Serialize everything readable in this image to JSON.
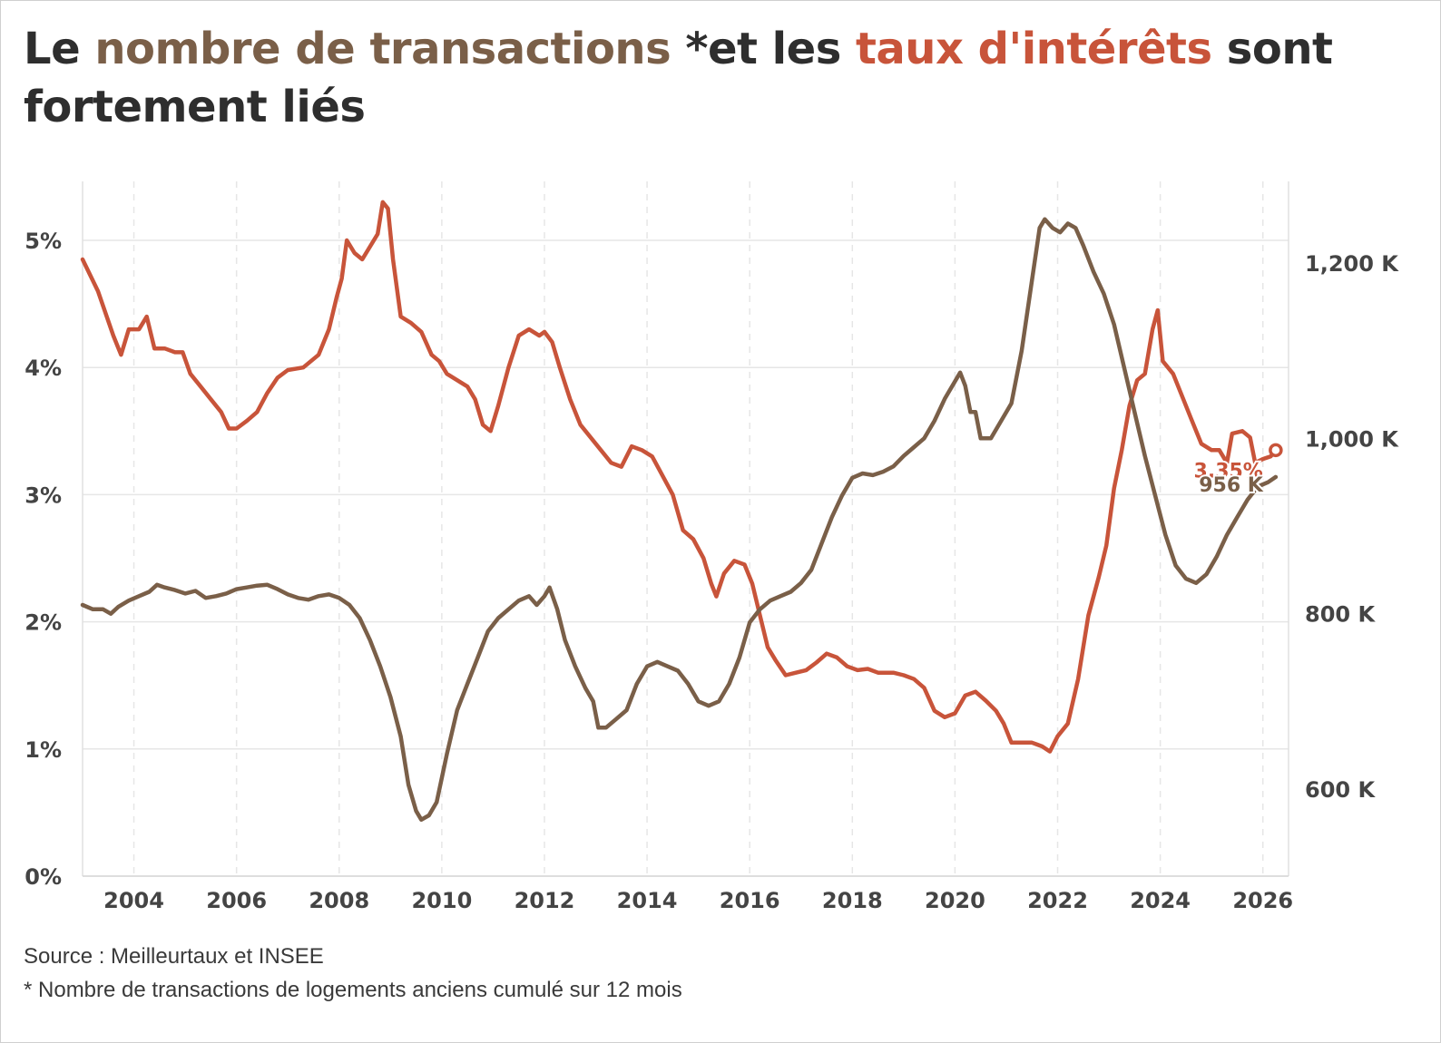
{
  "title": {
    "part1": "Le ",
    "part2": "nombre de transactions",
    "part3": " *et les ",
    "part4": "taux d'intérêts",
    "part5": " sont fortement liés"
  },
  "source": "Source : Meilleurtaux et INSEE",
  "note": "* Nombre de transactions de logements anciens cumulé sur 12 mois",
  "colors": {
    "rate": "#c8543a",
    "transactions": "#7a5f48",
    "text": "#2e2e2e",
    "axis": "#444444",
    "grid": "#e6e6e6"
  },
  "chart_data": {
    "type": "line",
    "x_ticks": [
      "2004",
      "2006",
      "2008",
      "2010",
      "2012",
      "2014",
      "2016",
      "2018",
      "2020",
      "2022",
      "2024",
      "2026"
    ],
    "xlim": [
      2003.0,
      2026.5
    ],
    "y_left_ticks": [
      "0%",
      "1%",
      "2%",
      "3%",
      "4%",
      "5%"
    ],
    "y_left_lim": [
      0,
      5.0
    ],
    "y_right_ticks": [
      "600 K",
      "800 K",
      "1,000 K",
      "1,200 K"
    ],
    "y_right_lim": [
      500,
      1300
    ],
    "grid": true,
    "series": [
      {
        "key": "rate",
        "axis": "left",
        "unit": "%",
        "end_label": "3.35%",
        "points": [
          [
            2003.0,
            4.85
          ],
          [
            2003.3,
            4.6
          ],
          [
            2003.6,
            4.25
          ],
          [
            2003.75,
            4.1
          ],
          [
            2003.9,
            4.3
          ],
          [
            2004.1,
            4.3
          ],
          [
            2004.25,
            4.4
          ],
          [
            2004.4,
            4.15
          ],
          [
            2004.6,
            4.15
          ],
          [
            2004.8,
            4.12
          ],
          [
            2004.95,
            4.12
          ],
          [
            2005.1,
            3.95
          ],
          [
            2005.3,
            3.85
          ],
          [
            2005.5,
            3.75
          ],
          [
            2005.7,
            3.65
          ],
          [
            2005.85,
            3.52
          ],
          [
            2006.0,
            3.52
          ],
          [
            2006.2,
            3.58
          ],
          [
            2006.4,
            3.65
          ],
          [
            2006.6,
            3.8
          ],
          [
            2006.8,
            3.92
          ],
          [
            2007.0,
            3.98
          ],
          [
            2007.3,
            4.0
          ],
          [
            2007.6,
            4.1
          ],
          [
            2007.8,
            4.3
          ],
          [
            2007.95,
            4.55
          ],
          [
            2008.05,
            4.7
          ],
          [
            2008.15,
            5.0
          ],
          [
            2008.3,
            4.9
          ],
          [
            2008.45,
            4.85
          ],
          [
            2008.6,
            4.95
          ],
          [
            2008.75,
            5.05
          ],
          [
            2008.85,
            5.3
          ],
          [
            2008.95,
            5.25
          ],
          [
            2009.05,
            4.85
          ],
          [
            2009.2,
            4.4
          ],
          [
            2009.4,
            4.35
          ],
          [
            2009.6,
            4.28
          ],
          [
            2009.8,
            4.1
          ],
          [
            2009.95,
            4.05
          ],
          [
            2010.1,
            3.95
          ],
          [
            2010.3,
            3.9
          ],
          [
            2010.5,
            3.85
          ],
          [
            2010.65,
            3.75
          ],
          [
            2010.8,
            3.55
          ],
          [
            2010.95,
            3.5
          ],
          [
            2011.1,
            3.7
          ],
          [
            2011.3,
            4.0
          ],
          [
            2011.5,
            4.25
          ],
          [
            2011.7,
            4.3
          ],
          [
            2011.9,
            4.25
          ],
          [
            2012.0,
            4.28
          ],
          [
            2012.15,
            4.2
          ],
          [
            2012.3,
            4.0
          ],
          [
            2012.5,
            3.75
          ],
          [
            2012.7,
            3.55
          ],
          [
            2012.9,
            3.45
          ],
          [
            2013.1,
            3.35
          ],
          [
            2013.3,
            3.25
          ],
          [
            2013.5,
            3.22
          ],
          [
            2013.7,
            3.38
          ],
          [
            2013.9,
            3.35
          ],
          [
            2014.1,
            3.3
          ],
          [
            2014.3,
            3.15
          ],
          [
            2014.5,
            3.0
          ],
          [
            2014.7,
            2.72
          ],
          [
            2014.9,
            2.65
          ],
          [
            2015.1,
            2.5
          ],
          [
            2015.25,
            2.3
          ],
          [
            2015.35,
            2.2
          ],
          [
            2015.5,
            2.38
          ],
          [
            2015.7,
            2.48
          ],
          [
            2015.9,
            2.45
          ],
          [
            2016.05,
            2.3
          ],
          [
            2016.2,
            2.05
          ],
          [
            2016.35,
            1.8
          ],
          [
            2016.5,
            1.7
          ],
          [
            2016.7,
            1.58
          ],
          [
            2016.9,
            1.6
          ],
          [
            2017.1,
            1.62
          ],
          [
            2017.3,
            1.68
          ],
          [
            2017.5,
            1.75
          ],
          [
            2017.7,
            1.72
          ],
          [
            2017.9,
            1.65
          ],
          [
            2018.1,
            1.62
          ],
          [
            2018.3,
            1.63
          ],
          [
            2018.5,
            1.6
          ],
          [
            2018.8,
            1.6
          ],
          [
            2019.0,
            1.58
          ],
          [
            2019.2,
            1.55
          ],
          [
            2019.4,
            1.48
          ],
          [
            2019.6,
            1.3
          ],
          [
            2019.8,
            1.25
          ],
          [
            2020.0,
            1.28
          ],
          [
            2020.2,
            1.42
          ],
          [
            2020.4,
            1.45
          ],
          [
            2020.6,
            1.38
          ],
          [
            2020.8,
            1.3
          ],
          [
            2020.95,
            1.2
          ],
          [
            2021.1,
            1.05
          ],
          [
            2021.3,
            1.05
          ],
          [
            2021.5,
            1.05
          ],
          [
            2021.7,
            1.02
          ],
          [
            2021.85,
            0.98
          ],
          [
            2022.0,
            1.1
          ],
          [
            2022.2,
            1.2
          ],
          [
            2022.4,
            1.55
          ],
          [
            2022.6,
            2.05
          ],
          [
            2022.8,
            2.35
          ],
          [
            2022.95,
            2.6
          ],
          [
            2023.1,
            3.05
          ],
          [
            2023.25,
            3.35
          ],
          [
            2023.4,
            3.7
          ],
          [
            2023.55,
            3.9
          ],
          [
            2023.7,
            3.95
          ],
          [
            2023.85,
            4.3
          ],
          [
            2023.95,
            4.45
          ],
          [
            2024.05,
            4.05
          ],
          [
            2024.25,
            3.95
          ],
          [
            2024.45,
            3.75
          ],
          [
            2024.6,
            3.6
          ],
          [
            2024.8,
            3.4
          ],
          [
            2025.0,
            3.35
          ],
          [
            2025.15,
            3.35
          ],
          [
            2025.3,
            3.25
          ],
          [
            2025.4,
            3.48
          ],
          [
            2025.6,
            3.5
          ],
          [
            2025.75,
            3.45
          ],
          [
            2025.85,
            3.25
          ],
          [
            2026.0,
            3.28
          ],
          [
            2026.15,
            3.3
          ],
          [
            2026.25,
            3.35
          ]
        ]
      },
      {
        "key": "transactions",
        "axis": "right",
        "unit": "K",
        "end_label": "956 K",
        "points": [
          [
            2003.0,
            810
          ],
          [
            2003.2,
            805
          ],
          [
            2003.4,
            805
          ],
          [
            2003.55,
            800
          ],
          [
            2003.7,
            808
          ],
          [
            2003.9,
            815
          ],
          [
            2004.1,
            820
          ],
          [
            2004.3,
            825
          ],
          [
            2004.45,
            833
          ],
          [
            2004.6,
            830
          ],
          [
            2004.8,
            827
          ],
          [
            2005.0,
            823
          ],
          [
            2005.2,
            826
          ],
          [
            2005.4,
            818
          ],
          [
            2005.6,
            820
          ],
          [
            2005.8,
            823
          ],
          [
            2006.0,
            828
          ],
          [
            2006.2,
            830
          ],
          [
            2006.4,
            832
          ],
          [
            2006.6,
            833
          ],
          [
            2006.8,
            828
          ],
          [
            2007.0,
            822
          ],
          [
            2007.2,
            818
          ],
          [
            2007.4,
            816
          ],
          [
            2007.6,
            820
          ],
          [
            2007.8,
            822
          ],
          [
            2008.0,
            818
          ],
          [
            2008.2,
            810
          ],
          [
            2008.4,
            795
          ],
          [
            2008.6,
            770
          ],
          [
            2008.8,
            740
          ],
          [
            2009.0,
            705
          ],
          [
            2009.2,
            660
          ],
          [
            2009.35,
            605
          ],
          [
            2009.5,
            575
          ],
          [
            2009.6,
            565
          ],
          [
            2009.75,
            570
          ],
          [
            2009.9,
            585
          ],
          [
            2010.1,
            640
          ],
          [
            2010.3,
            690
          ],
          [
            2010.5,
            720
          ],
          [
            2010.7,
            750
          ],
          [
            2010.9,
            780
          ],
          [
            2011.1,
            795
          ],
          [
            2011.3,
            805
          ],
          [
            2011.5,
            815
          ],
          [
            2011.7,
            820
          ],
          [
            2011.85,
            810
          ],
          [
            2012.0,
            820
          ],
          [
            2012.1,
            830
          ],
          [
            2012.25,
            805
          ],
          [
            2012.4,
            770
          ],
          [
            2012.6,
            740
          ],
          [
            2012.8,
            715
          ],
          [
            2012.95,
            700
          ],
          [
            2013.05,
            670
          ],
          [
            2013.2,
            670
          ],
          [
            2013.4,
            680
          ],
          [
            2013.6,
            690
          ],
          [
            2013.8,
            720
          ],
          [
            2014.0,
            740
          ],
          [
            2014.2,
            745
          ],
          [
            2014.4,
            740
          ],
          [
            2014.6,
            735
          ],
          [
            2014.8,
            720
          ],
          [
            2015.0,
            700
          ],
          [
            2015.2,
            695
          ],
          [
            2015.4,
            700
          ],
          [
            2015.6,
            720
          ],
          [
            2015.8,
            750
          ],
          [
            2016.0,
            790
          ],
          [
            2016.2,
            805
          ],
          [
            2016.4,
            815
          ],
          [
            2016.6,
            820
          ],
          [
            2016.8,
            825
          ],
          [
            2017.0,
            835
          ],
          [
            2017.2,
            850
          ],
          [
            2017.4,
            880
          ],
          [
            2017.6,
            910
          ],
          [
            2017.8,
            935
          ],
          [
            2018.0,
            955
          ],
          [
            2018.2,
            960
          ],
          [
            2018.4,
            958
          ],
          [
            2018.6,
            962
          ],
          [
            2018.8,
            968
          ],
          [
            2019.0,
            980
          ],
          [
            2019.2,
            990
          ],
          [
            2019.4,
            1000
          ],
          [
            2019.6,
            1020
          ],
          [
            2019.8,
            1045
          ],
          [
            2020.0,
            1065
          ],
          [
            2020.1,
            1075
          ],
          [
            2020.2,
            1060
          ],
          [
            2020.3,
            1030
          ],
          [
            2020.4,
            1030
          ],
          [
            2020.5,
            1000
          ],
          [
            2020.7,
            1000
          ],
          [
            2020.9,
            1020
          ],
          [
            2021.1,
            1040
          ],
          [
            2021.3,
            1100
          ],
          [
            2021.5,
            1180
          ],
          [
            2021.65,
            1240
          ],
          [
            2021.75,
            1250
          ],
          [
            2021.9,
            1240
          ],
          [
            2022.05,
            1235
          ],
          [
            2022.2,
            1245
          ],
          [
            2022.35,
            1240
          ],
          [
            2022.5,
            1220
          ],
          [
            2022.7,
            1190
          ],
          [
            2022.9,
            1165
          ],
          [
            2023.1,
            1130
          ],
          [
            2023.3,
            1080
          ],
          [
            2023.5,
            1030
          ],
          [
            2023.7,
            980
          ],
          [
            2023.9,
            935
          ],
          [
            2024.1,
            890
          ],
          [
            2024.3,
            855
          ],
          [
            2024.5,
            840
          ],
          [
            2024.7,
            835
          ],
          [
            2024.9,
            845
          ],
          [
            2025.1,
            865
          ],
          [
            2025.3,
            890
          ],
          [
            2025.5,
            910
          ],
          [
            2025.7,
            930
          ],
          [
            2025.9,
            945
          ],
          [
            2026.1,
            950
          ],
          [
            2026.25,
            956
          ]
        ]
      }
    ]
  }
}
